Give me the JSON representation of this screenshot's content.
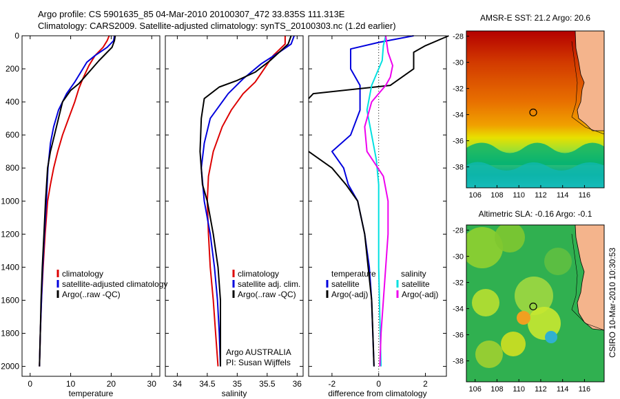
{
  "header": {
    "line1": "Argo profile: CS 5901635_85 04-Mar-2010 20100307_472 33.835S 111.313E",
    "line2": "Climatology: CARS2009. Satellite-adjusted climatology: synTS_20100303.nc (1.2d earlier)"
  },
  "footer": {
    "stamp": "CSIRO 10-Mar-2010 10:30:53"
  },
  "colors": {
    "climatology": "#dd0000",
    "satellite": "#0000dd",
    "argo": "#000000",
    "sat_salinity": "#00e0e0",
    "argo_salinity": "#ee00ee",
    "land": "#f4b48c"
  },
  "chart_data": [
    {
      "type": "line",
      "xlabel": "temperature",
      "xlim": [
        -2,
        32
      ],
      "ylim": [
        2060,
        0
      ],
      "xticks": [
        0,
        10,
        20,
        30
      ],
      "yticks": [
        0,
        200,
        400,
        600,
        800,
        1000,
        1200,
        1400,
        1600,
        1800,
        2000
      ],
      "legend": [
        "climatology",
        "satellite-adjusted climatology",
        "Argo(..raw -QC)"
      ],
      "series": [
        {
          "name": "climatology",
          "color": "#dd0000",
          "points": [
            [
              19.5,
              0
            ],
            [
              19,
              30
            ],
            [
              18,
              70
            ],
            [
              16,
              120
            ],
            [
              14.5,
              180
            ],
            [
              13,
              260
            ],
            [
              12,
              320
            ],
            [
              11,
              400
            ],
            [
              9.5,
              500
            ],
            [
              8,
              600
            ],
            [
              6.8,
              700
            ],
            [
              5.8,
              800
            ],
            [
              5,
              900
            ],
            [
              4.3,
              1000
            ],
            [
              3.7,
              1200
            ],
            [
              3.2,
              1400
            ],
            [
              2.8,
              1600
            ],
            [
              2.5,
              1800
            ],
            [
              2.3,
              2000
            ]
          ]
        },
        {
          "name": "satellite-adjusted climatology",
          "color": "#0000dd",
          "points": [
            [
              20.8,
              0
            ],
            [
              20.6,
              30
            ],
            [
              19,
              70
            ],
            [
              16,
              120
            ],
            [
              14,
              160
            ],
            [
              12.5,
              220
            ],
            [
              11,
              280
            ],
            [
              9,
              350
            ],
            [
              7,
              450
            ],
            [
              5.8,
              550
            ],
            [
              5,
              650
            ],
            [
              4.4,
              800
            ],
            [
              4,
              1000
            ],
            [
              3.5,
              1200
            ],
            [
              3.1,
              1400
            ],
            [
              2.8,
              1600
            ],
            [
              2.5,
              1800
            ],
            [
              2.3,
              2000
            ]
          ]
        },
        {
          "name": "Argo(..raw -QC)",
          "color": "#000000",
          "points": [
            [
              21,
              0
            ],
            [
              20.8,
              30
            ],
            [
              20.2,
              70
            ],
            [
              19,
              100
            ],
            [
              17,
              150
            ],
            [
              14.5,
              220
            ],
            [
              12,
              290
            ],
            [
              10,
              330
            ],
            [
              8,
              400
            ],
            [
              7,
              500
            ],
            [
              6,
              600
            ],
            [
              5,
              700
            ],
            [
              4.3,
              800
            ],
            [
              3.8,
              1000
            ],
            [
              3.4,
              1200
            ],
            [
              3,
              1400
            ],
            [
              2.7,
              1600
            ],
            [
              2.5,
              1800
            ],
            [
              2.3,
              2000
            ]
          ]
        }
      ]
    },
    {
      "type": "line",
      "xlabel": "salinity",
      "xlim": [
        33.8,
        36.1
      ],
      "ylim": [
        2060,
        0
      ],
      "xticks": [
        34,
        34.5,
        35,
        35.5,
        36
      ],
      "legend": [
        "climatology",
        "satellite adj. clim.",
        "Argo(..raw -QC)"
      ],
      "annotation": [
        "Argo AUSTRALIA",
        "PI: Susan Wijffels"
      ],
      "series": [
        {
          "name": "climatology",
          "color": "#dd0000",
          "points": [
            [
              35.8,
              0
            ],
            [
              35.8,
              50
            ],
            [
              35.6,
              120
            ],
            [
              35.45,
              200
            ],
            [
              35.3,
              280
            ],
            [
              35.1,
              350
            ],
            [
              34.9,
              450
            ],
            [
              34.75,
              550
            ],
            [
              34.6,
              700
            ],
            [
              34.52,
              850
            ],
            [
              34.5,
              1000
            ],
            [
              34.52,
              1200
            ],
            [
              34.55,
              1400
            ],
            [
              34.6,
              1600
            ],
            [
              34.64,
              1800
            ],
            [
              34.68,
              2000
            ]
          ]
        },
        {
          "name": "satellite adj. clim.",
          "color": "#0000dd",
          "points": [
            [
              35.95,
              0
            ],
            [
              35.9,
              50
            ],
            [
              35.7,
              100
            ],
            [
              35.4,
              170
            ],
            [
              35.1,
              260
            ],
            [
              34.85,
              350
            ],
            [
              34.55,
              500
            ],
            [
              34.45,
              650
            ],
            [
              34.4,
              800
            ],
            [
              34.45,
              1000
            ],
            [
              34.55,
              1200
            ],
            [
              34.62,
              1400
            ],
            [
              34.67,
              1600
            ],
            [
              34.7,
              1800
            ],
            [
              34.72,
              2000
            ]
          ]
        },
        {
          "name": "Argo(..raw -QC)",
          "color": "#000000",
          "points": [
            [
              35.9,
              0
            ],
            [
              35.85,
              50
            ],
            [
              35.55,
              150
            ],
            [
              35.3,
              220
            ],
            [
              35,
              270
            ],
            [
              34.7,
              310
            ],
            [
              34.45,
              380
            ],
            [
              34.4,
              500
            ],
            [
              34.38,
              700
            ],
            [
              34.42,
              900
            ],
            [
              34.5,
              1000
            ],
            [
              34.6,
              1200
            ],
            [
              34.68,
              1400
            ],
            [
              34.72,
              1600
            ],
            [
              34.72,
              1800
            ],
            [
              34.72,
              2000
            ]
          ]
        }
      ]
    },
    {
      "type": "line",
      "xlabel": "difference from climatology",
      "xlim": [
        -3,
        2.9
      ],
      "ylim": [
        2060,
        0
      ],
      "xticks": [
        -2,
        0,
        2
      ],
      "legend": [
        "temperature",
        "satellite",
        "Argo(-adj)",
        "salinity",
        "satellite",
        "Argo(-adj)"
      ],
      "series": [
        {
          "name": "satellite",
          "color": "#0000dd",
          "points": [
            [
              1.5,
              0
            ],
            [
              0,
              40
            ],
            [
              -1.2,
              80
            ],
            [
              -1.2,
              200
            ],
            [
              -0.8,
              300
            ],
            [
              -0.8,
              450
            ],
            [
              -1.2,
              600
            ],
            [
              -2,
              700
            ],
            [
              -1.5,
              800
            ],
            [
              -1.3,
              900
            ],
            [
              -0.9,
              1000
            ],
            [
              -0.6,
              1200
            ],
            [
              -0.4,
              1400
            ],
            [
              -0.3,
              1600
            ],
            [
              -0.25,
              1800
            ],
            [
              -0.2,
              2000
            ]
          ]
        },
        {
          "name": "Argo(-adj)",
          "color": "#000000",
          "points": [
            [
              3,
              0
            ],
            [
              2,
              60
            ],
            [
              1.5,
              100
            ],
            [
              1.5,
              200
            ],
            [
              0.5,
              300
            ],
            [
              -2.8,
              350
            ],
            [
              -3,
              380
            ]
          ]
        },
        {
          "name": "Argo(-adj)",
          "color": "#000000",
          "points": [
            [
              -3,
              700
            ],
            [
              -2,
              800
            ],
            [
              -1.4,
              900
            ],
            [
              -0.9,
              1000
            ],
            [
              -0.6,
              1200
            ],
            [
              -0.45,
              1400
            ],
            [
              -0.3,
              1600
            ],
            [
              -0.25,
              1800
            ],
            [
              -0.2,
              2000
            ]
          ]
        },
        {
          "name": "satellite",
          "color": "#00e0e0",
          "points": [
            [
              0.3,
              0
            ],
            [
              0.2,
              60
            ],
            [
              0.15,
              150
            ],
            [
              -0.3,
              300
            ],
            [
              -0.5,
              450
            ],
            [
              -0.3,
              600
            ],
            [
              -0.1,
              750
            ],
            [
              0,
              900
            ],
            [
              0,
              1100
            ],
            [
              0,
              1400
            ],
            [
              0.05,
              1700
            ],
            [
              0.1,
              2000
            ]
          ]
        },
        {
          "name": "Argo(-adj)",
          "color": "#ee00ee",
          "points": [
            [
              0.3,
              0
            ],
            [
              0.4,
              100
            ],
            [
              0.6,
              180
            ],
            [
              0.5,
              250
            ],
            [
              0.3,
              300
            ],
            [
              -0.3,
              400
            ],
            [
              -0.6,
              550
            ],
            [
              -0.5,
              700
            ],
            [
              0.2,
              850
            ],
            [
              0.4,
              1000
            ],
            [
              0.4,
              1200
            ],
            [
              0.3,
              1400
            ],
            [
              0.2,
              1600
            ],
            [
              0.1,
              1800
            ],
            [
              0.05,
              2000
            ]
          ]
        }
      ]
    },
    {
      "type": "heatmap",
      "title": "AMSR-E SST: 21.2 Argo: 20.6",
      "xticks": [
        106,
        108,
        110,
        112,
        114,
        116
      ],
      "yticks": [
        -28,
        -30,
        -32,
        -34,
        -36,
        -38
      ],
      "marker": [
        111.313,
        -33.835
      ]
    },
    {
      "type": "heatmap",
      "title": "Altimetric SLA: -0.16 Argo: -0.1",
      "xticks": [
        106,
        108,
        110,
        112,
        114,
        116
      ],
      "yticks": [
        -28,
        -30,
        -32,
        -34,
        -36,
        -38
      ],
      "marker": [
        111.313,
        -33.835
      ]
    }
  ]
}
